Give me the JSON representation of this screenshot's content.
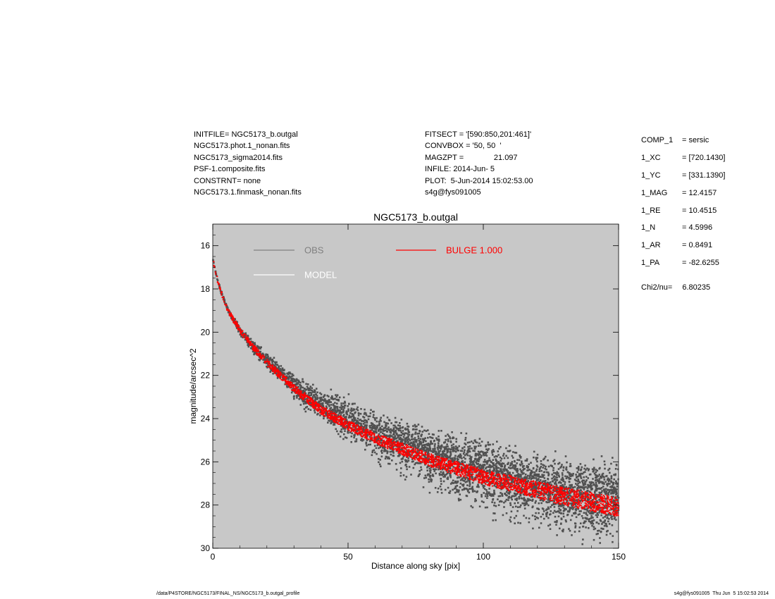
{
  "header_left": [
    "INITFILE= NGC5173_b.outgal",
    "NGC5173.phot.1_nonan.fits",
    "NGC5173_sigma2014.fits",
    "PSF-1.composite.fits",
    "CONSTRNT= none",
    "NGC5173.1.finmask_nonan.fits"
  ],
  "header_mid": [
    "FITSECT = '[590:850,201:461]'",
    "CONVBOX = '50, 50  '",
    "MAGZPT =              21.097",
    "INFILE: 2014-Jun- 5",
    "PLOT:  5-Jun-2014 15:02:53.00",
    "s4g@fys091005"
  ],
  "components": [
    {
      "label": "COMP_1",
      "value": "= sersic"
    },
    {
      "label": "1_XC",
      "value": "= [720.1430]"
    },
    {
      "label": "1_YC",
      "value": "= [331.1390]"
    },
    {
      "label": "1_MAG",
      "value": "= 12.4157"
    },
    {
      "label": "1_RE",
      "value": "= 10.4515"
    },
    {
      "label": "1_N",
      "value": "= 4.5996"
    },
    {
      "label": "1_AR",
      "value": "= 0.8491"
    },
    {
      "label": "1_PA",
      "value": "= -82.6255"
    }
  ],
  "chi2": {
    "label": "Chi2/nu=",
    "value": "6.80235"
  },
  "footer": {
    "left": "/data/P4STORE/NGC5173/FINAL_NS/NGC5173_b.outgal_profile",
    "right": "s4g@fys091005  Thu Jun  5 15:02:53 2014"
  },
  "colors": {
    "plot_background": "#c8c8c8",
    "obs": "#505050",
    "obs_legend": "#808080",
    "model": "#ffffff",
    "bulge": "#ff0000"
  },
  "chart_data": {
    "type": "scatter",
    "title": "NGC5173_b.outgal",
    "xlabel": "Distance along sky [pix]",
    "ylabel": "magnitude/arcsec^2",
    "xlim": [
      0,
      150
    ],
    "ylim": [
      30,
      15
    ],
    "y_inverted": true,
    "x_ticks": [
      "0",
      "50",
      "100",
      "150"
    ],
    "y_ticks": [
      "16",
      "18",
      "20",
      "22",
      "24",
      "26",
      "28",
      "30"
    ],
    "legend": [
      {
        "name": "OBS",
        "color": "#808080"
      },
      {
        "name": "MODEL",
        "color": "#ffffff"
      },
      {
        "name": "BULGE  1.000",
        "color": "#ff0000"
      }
    ],
    "series": [
      {
        "name": "OBS",
        "x": [
          0,
          1,
          2,
          3,
          5,
          7,
          10,
          15,
          20,
          25,
          30,
          40,
          50,
          60,
          70,
          80,
          90,
          100,
          110,
          120,
          130,
          140,
          150
        ],
        "values": [
          16.6,
          17.2,
          17.7,
          18.1,
          18.8,
          19.3,
          19.9,
          20.7,
          21.3,
          21.9,
          22.5,
          23.4,
          24.0,
          24.6,
          25.1,
          25.6,
          26.0,
          26.4,
          26.8,
          27.1,
          27.4,
          27.6,
          27.7
        ],
        "scatter_low": [
          0.0,
          0.05,
          0.1,
          0.1,
          0.15,
          0.2,
          0.3,
          0.4,
          0.5,
          0.6,
          0.8,
          1.1,
          1.5,
          1.8,
          2.1,
          2.3,
          2.5,
          2.6,
          2.7,
          2.8,
          2.9,
          2.9,
          3.0
        ],
        "scatter_high": [
          0.0,
          0.05,
          0.1,
          0.1,
          0.15,
          0.2,
          0.3,
          0.4,
          0.5,
          0.6,
          0.8,
          1.1,
          1.5,
          1.3,
          1.4,
          1.6,
          1.8,
          2.0,
          2.1,
          2.2,
          2.2,
          2.3,
          2.3
        ]
      },
      {
        "name": "BULGE  1.000",
        "x": [
          0,
          1,
          2,
          3,
          5,
          7,
          10,
          15,
          20,
          25,
          30,
          40,
          50,
          60,
          70,
          80,
          90,
          100,
          110,
          120,
          130,
          140,
          150
        ],
        "values": [
          16.6,
          17.2,
          17.7,
          18.1,
          18.8,
          19.3,
          19.9,
          20.7,
          21.4,
          22.0,
          22.6,
          23.6,
          24.3,
          24.9,
          25.4,
          25.9,
          26.3,
          26.7,
          27.0,
          27.3,
          27.6,
          27.85,
          28.1
        ],
        "band_width": 0.35
      }
    ]
  }
}
